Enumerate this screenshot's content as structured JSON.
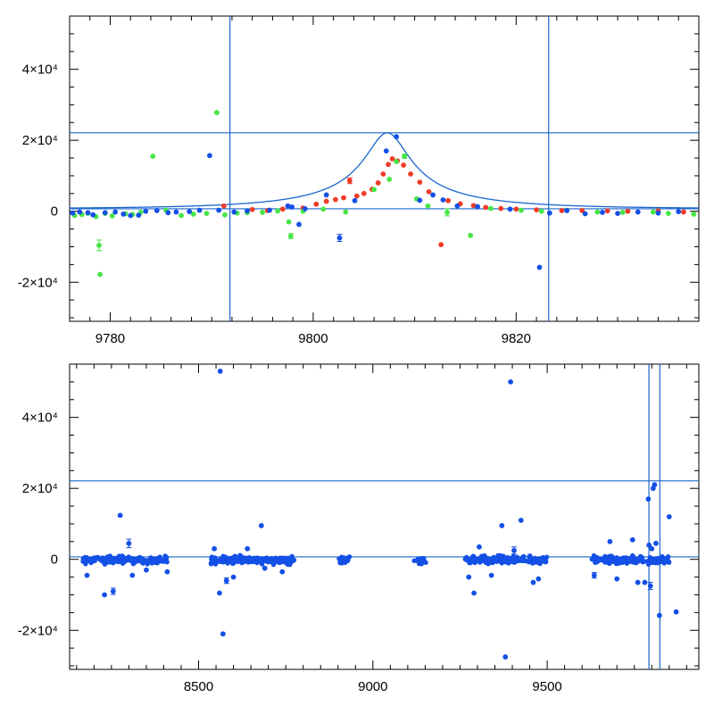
{
  "colors": {
    "red": "#f03c28",
    "green": "#46e646",
    "blue": "#1450e6",
    "line": "#1a66cc"
  },
  "chart_data": [
    {
      "type": "scatter",
      "xlim": [
        9776,
        9838
      ],
      "ylim": [
        -31000,
        55000
      ],
      "xticks": [
        9780,
        9800,
        9820
      ],
      "xtick_labels": [
        "9780",
        "9800",
        "9820"
      ],
      "yticks": [
        -20000,
        0,
        20000,
        40000
      ],
      "ytick_labels": [
        "-2×10⁴",
        "0",
        "2×10⁴",
        "4×10⁴"
      ],
      "vlines": [
        9791.8,
        9823.2
      ],
      "hlines": [
        22100,
        700
      ],
      "model": {
        "t0": 9807.3,
        "u0": 0.14,
        "tE": 16,
        "baseline": 700,
        "amplitude": 21400
      },
      "series": [
        {
          "color": "red",
          "points": [
            [
              9791.2,
              1500,
              0
            ],
            [
              9794,
              500,
              0
            ],
            [
              9795.5,
              200,
              0
            ],
            [
              9797,
              600,
              0
            ],
            [
              9799,
              900,
              0
            ],
            [
              9800.3,
              2000,
              0
            ],
            [
              9801.3,
              2800,
              0
            ],
            [
              9802.2,
              3300,
              0
            ],
            [
              9803,
              3800,
              0
            ],
            [
              9803.6,
              8600,
              800
            ],
            [
              9804.3,
              4300,
              0
            ],
            [
              9805,
              5000,
              0
            ],
            [
              9805.8,
              6200,
              0
            ],
            [
              9806.4,
              8000,
              0
            ],
            [
              9806.9,
              10500,
              0
            ],
            [
              9807.4,
              13200,
              0
            ],
            [
              9807.8,
              14800,
              0
            ],
            [
              9808.3,
              14200,
              0
            ],
            [
              9808.9,
              13000,
              0
            ],
            [
              9809.6,
              10500,
              0
            ],
            [
              9810.5,
              8200,
              0
            ],
            [
              9811.4,
              5500,
              0
            ],
            [
              9812.6,
              -9400,
              0
            ],
            [
              9813.3,
              3000,
              0
            ],
            [
              9814.5,
              2100,
              0
            ],
            [
              9815.8,
              1600,
              0
            ],
            [
              9817,
              1100,
              0
            ],
            [
              9818.5,
              800,
              0
            ],
            [
              9820,
              600,
              0
            ],
            [
              9822,
              400,
              0
            ],
            [
              9824.5,
              200,
              0
            ],
            [
              9826.5,
              200,
              0
            ],
            [
              9829,
              100,
              0
            ],
            [
              9831,
              0,
              0
            ],
            [
              9834,
              100,
              0
            ],
            [
              9836.5,
              -200,
              0
            ]
          ]
        },
        {
          "color": "green",
          "points": [
            [
              9776.5,
              -1200,
              0
            ],
            [
              9777.2,
              -900,
              0
            ],
            [
              9777.8,
              -600,
              0
            ],
            [
              9778.6,
              -1500,
              0
            ],
            [
              9778.9,
              -9600,
              1500
            ],
            [
              9779,
              -17800,
              0
            ],
            [
              9779.5,
              -600,
              0
            ],
            [
              9780.2,
              -1300,
              0
            ],
            [
              9781.5,
              -700,
              0
            ],
            [
              9782.2,
              -900,
              0
            ],
            [
              9783,
              -300,
              0
            ],
            [
              9784.2,
              15500,
              0
            ],
            [
              9785.5,
              300,
              0
            ],
            [
              9787,
              -1200,
              0
            ],
            [
              9788.2,
              -800,
              0
            ],
            [
              9789.5,
              -600,
              0
            ],
            [
              9790.5,
              27800,
              0
            ],
            [
              9791.3,
              -1000,
              0
            ],
            [
              9792.5,
              -500,
              0
            ],
            [
              9793.5,
              -400,
              0
            ],
            [
              9795,
              -300,
              0
            ],
            [
              9796.5,
              100,
              0
            ],
            [
              9797.6,
              -3000,
              0
            ],
            [
              9797.8,
              -7000,
              700
            ],
            [
              9799,
              0,
              0
            ],
            [
              9801,
              600,
              0
            ],
            [
              9803.2,
              -200,
              0
            ],
            [
              9806,
              6100,
              0
            ],
            [
              9807.5,
              9000,
              0
            ],
            [
              9808.2,
              14000,
              0
            ],
            [
              9809,
              15500,
              600
            ],
            [
              9810.2,
              3500,
              0
            ],
            [
              9811.3,
              1500,
              0
            ],
            [
              9813.2,
              -300,
              1000
            ],
            [
              9815.5,
              -6800,
              0
            ],
            [
              9817.5,
              800,
              0
            ],
            [
              9820.5,
              300,
              0
            ],
            [
              9822.5,
              0,
              0
            ],
            [
              9825,
              300,
              0
            ],
            [
              9828,
              -200,
              0
            ],
            [
              9830.5,
              -300,
              0
            ],
            [
              9833.5,
              -200,
              0
            ],
            [
              9835,
              -600,
              0
            ],
            [
              9837.5,
              -800,
              0
            ]
          ]
        },
        {
          "color": "blue",
          "points": [
            [
              9776.3,
              -500,
              0
            ],
            [
              9777,
              -200,
              0
            ],
            [
              9777.8,
              -400,
              0
            ],
            [
              9778.3,
              -1000,
              0
            ],
            [
              9779.5,
              -400,
              0
            ],
            [
              9780.5,
              -200,
              0
            ],
            [
              9781.3,
              -800,
              0
            ],
            [
              9782,
              -1200,
              0
            ],
            [
              9782.8,
              -1100,
              0
            ],
            [
              9783.5,
              0,
              0
            ],
            [
              9784.6,
              200,
              0
            ],
            [
              9785.7,
              -400,
              0
            ],
            [
              9786.5,
              -200,
              0
            ],
            [
              9787.8,
              -100,
              0
            ],
            [
              9788.8,
              300,
              0
            ],
            [
              9789.8,
              15700,
              0
            ],
            [
              9790.7,
              300,
              0
            ],
            [
              9792.2,
              -200,
              0
            ],
            [
              9793.5,
              100,
              0
            ],
            [
              9795.7,
              300,
              0
            ],
            [
              9797.5,
              1500,
              0
            ],
            [
              9797.9,
              1200,
              0
            ],
            [
              9798.6,
              -3700,
              0
            ],
            [
              9799.2,
              700,
              0
            ],
            [
              9801.3,
              4600,
              0
            ],
            [
              9802.6,
              -7500,
              1000
            ],
            [
              9804.1,
              3000,
              0
            ],
            [
              9807.2,
              17000,
              0
            ],
            [
              9808.2,
              21000,
              0
            ],
            [
              9810.5,
              3100,
              0
            ],
            [
              9811.8,
              4600,
              0
            ],
            [
              9812.8,
              3200,
              0
            ],
            [
              9814.2,
              1500,
              0
            ],
            [
              9816.2,
              1300,
              0
            ],
            [
              9819.4,
              600,
              0
            ],
            [
              9822.3,
              -15800,
              0
            ],
            [
              9823.3,
              -500,
              0
            ],
            [
              9825,
              200,
              0
            ],
            [
              9826.8,
              -700,
              0
            ],
            [
              9828.5,
              -300,
              0
            ],
            [
              9830,
              -600,
              0
            ],
            [
              9832,
              -200,
              0
            ],
            [
              9834,
              -500,
              0
            ],
            [
              9836,
              -100,
              0
            ]
          ]
        }
      ]
    },
    {
      "type": "scatter",
      "xlim": [
        8130,
        9935
      ],
      "ylim": [
        -31000,
        55000
      ],
      "xticks": [
        8500,
        9000,
        9500
      ],
      "xtick_labels": [
        "8500",
        "9000",
        "9500"
      ],
      "yticks": [
        -20000,
        0,
        20000,
        40000
      ],
      "ytick_labels": [
        "-2×10⁴",
        "0",
        "2×10⁴",
        "4×10⁴"
      ],
      "vlines": [
        9791.8,
        9823.2
      ],
      "hlines": [
        22100,
        700
      ],
      "clusters": [
        {
          "start": 8168,
          "end": 8410,
          "n": 160
        },
        {
          "start": 8535,
          "end": 8775,
          "n": 190
        },
        {
          "start": 8900,
          "end": 8935,
          "n": 22
        },
        {
          "start": 9118,
          "end": 9152,
          "n": 18
        },
        {
          "start": 9265,
          "end": 9500,
          "n": 200
        },
        {
          "start": 9628,
          "end": 9850,
          "n": 170
        }
      ],
      "series": [
        {
          "color": "blue",
          "points": [
            [
              8180,
              -4500,
              0
            ],
            [
              8230,
              -10000,
              0
            ],
            [
              8255,
              -9000,
              900
            ],
            [
              8275,
              12400,
              0
            ],
            [
              8300,
              4500,
              1200
            ],
            [
              8310,
              -4500,
              0
            ],
            [
              8350,
              -3000,
              0
            ],
            [
              8410,
              -3500,
              0
            ],
            [
              8545,
              3000,
              0
            ],
            [
              8560,
              -9500,
              0
            ],
            [
              8562,
              53000,
              0
            ],
            [
              8570,
              -21000,
              0
            ],
            [
              8580,
              -6000,
              800
            ],
            [
              8600,
              -5000,
              0
            ],
            [
              8640,
              3000,
              0
            ],
            [
              8680,
              9500,
              0
            ],
            [
              8690,
              -2500,
              0
            ],
            [
              8740,
              -3500,
              0
            ],
            [
              9275,
              -5000,
              0
            ],
            [
              9290,
              -9500,
              0
            ],
            [
              9305,
              3500,
              0
            ],
            [
              9340,
              -4500,
              0
            ],
            [
              9370,
              9500,
              0
            ],
            [
              9380,
              -27500,
              0
            ],
            [
              9395,
              50000,
              0
            ],
            [
              9405,
              2500,
              1000
            ],
            [
              9425,
              11000,
              0
            ],
            [
              9460,
              -6500,
              0
            ],
            [
              9475,
              -5500,
              0
            ],
            [
              9635,
              -4500,
              800
            ],
            [
              9680,
              5000,
              0
            ],
            [
              9700,
              -5500,
              0
            ],
            [
              9745,
              5500,
              0
            ],
            [
              9760,
              -6500,
              0
            ],
            [
              9780,
              -6500,
              0
            ],
            [
              9792,
              4000,
              0
            ],
            [
              9800,
              3000,
              0
            ],
            [
              9804,
              20000,
              0
            ],
            [
              9808,
              21000,
              0
            ],
            [
              9812,
              4500,
              0
            ],
            [
              9822,
              -15800,
              0
            ],
            [
              9850,
              12000,
              0
            ],
            [
              9870,
              -14800,
              0
            ],
            [
              9790,
              17000,
              0
            ],
            [
              9796,
              -7500,
              1000
            ]
          ]
        }
      ]
    }
  ]
}
